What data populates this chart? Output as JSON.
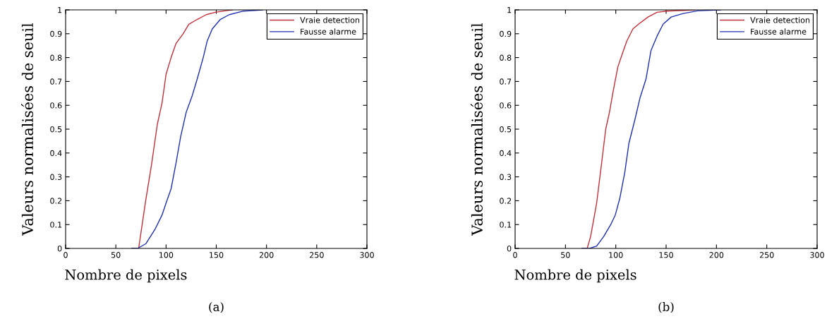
{
  "chart_data": [
    {
      "type": "line",
      "title": "(a)",
      "xlabel": "Nombre de pixels",
      "ylabel": "Valeurs normalisées de seuil",
      "xlim": [
        0,
        300
      ],
      "ylim": [
        0,
        1
      ],
      "xticks": [
        0,
        50,
        100,
        150,
        200,
        250,
        300
      ],
      "yticks": [
        0,
        0.1,
        0.2,
        0.3,
        0.4,
        0.5,
        0.6,
        0.7,
        0.8,
        0.9,
        1
      ],
      "legend": "top right",
      "grid": false,
      "series": [
        {
          "name": "Vraie detection",
          "color": "#c0303a",
          "x": [
            66,
            72.7,
            79.7,
            85.5,
            91.3,
            96,
            100,
            105,
            110,
            117,
            122.7,
            131,
            140,
            149,
            166
          ],
          "values": [
            0,
            0,
            0.2,
            0.35,
            0.52,
            0.61,
            0.73,
            0.8,
            0.86,
            0.9,
            0.94,
            0.96,
            0.98,
            0.99,
            1
          ]
        },
        {
          "name": "Fausse alarme",
          "color": "#2030b0",
          "x": [
            66,
            71.6,
            80,
            89,
            96,
            100,
            105,
            110,
            114.6,
            120,
            126,
            131,
            137,
            141,
            146,
            154,
            163,
            177,
            196
          ],
          "values": [
            0,
            0,
            0.02,
            0.08,
            0.14,
            0.19,
            0.25,
            0.36,
            0.47,
            0.57,
            0.64,
            0.71,
            0.8,
            0.87,
            0.92,
            0.96,
            0.98,
            0.995,
            1
          ]
        }
      ]
    },
    {
      "type": "line",
      "title": "(b)",
      "xlabel": "Nombre de pixels",
      "ylabel": "Valeurs normalisées de seuil",
      "xlim": [
        0,
        300
      ],
      "ylim": [
        0,
        1
      ],
      "xticks": [
        0,
        50,
        100,
        150,
        200,
        250,
        300
      ],
      "yticks": [
        0,
        0.1,
        0.2,
        0.3,
        0.4,
        0.5,
        0.6,
        0.7,
        0.8,
        0.9,
        1
      ],
      "legend": "top right",
      "grid": false,
      "series": [
        {
          "name": "Vraie detection",
          "color": "#c0303a",
          "x": [
            66.5,
            71.6,
            75,
            81,
            86,
            90,
            93.7,
            97,
            102,
            106,
            111,
            117,
            122.6,
            132,
            141,
            150.5,
            178
          ],
          "values": [
            0,
            0,
            0.05,
            0.19,
            0.36,
            0.5,
            0.57,
            0.65,
            0.76,
            0.81,
            0.87,
            0.92,
            0.94,
            0.97,
            0.99,
            0.995,
            1
          ]
        },
        {
          "name": "Fausse alarme",
          "color": "#2030b0",
          "x": [
            66.5,
            74,
            81,
            88,
            95,
            99.5,
            104,
            109,
            113,
            119,
            124,
            130,
            135,
            141,
            147,
            155,
            167,
            181,
            204
          ],
          "values": [
            0,
            0,
            0.01,
            0.05,
            0.1,
            0.14,
            0.21,
            0.32,
            0.44,
            0.54,
            0.63,
            0.71,
            0.83,
            0.89,
            0.94,
            0.97,
            0.985,
            0.996,
            1
          ]
        }
      ]
    }
  ]
}
